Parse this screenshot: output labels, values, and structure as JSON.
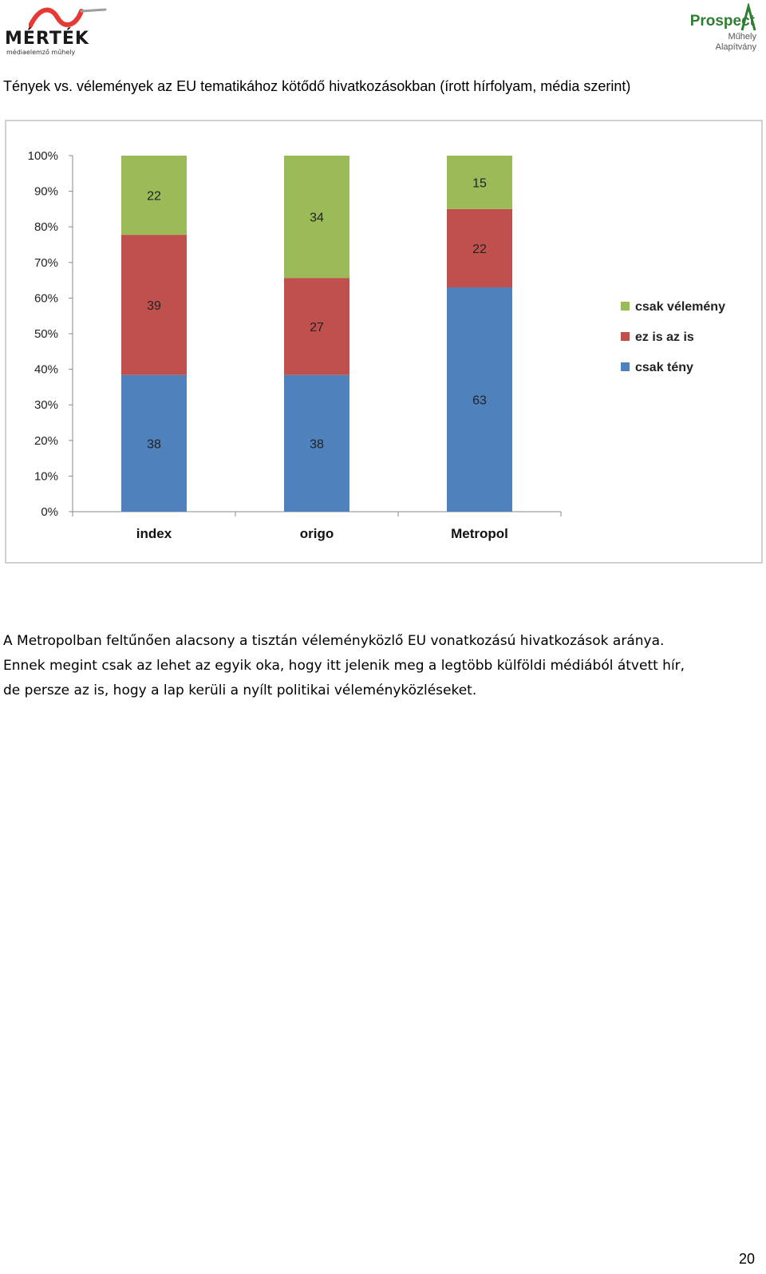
{
  "header": {
    "left_logo": {
      "name": "MÉRTÉK",
      "subtitle": "médiaelemző műhely",
      "accent": "#e53935"
    },
    "right_logo": {
      "name": "Prospect",
      "line2": "Műhely",
      "line3": "Alapítvány",
      "accent": "#2e7d32"
    }
  },
  "page_title": "Tények vs. vélemények az EU tematikához kötődő hivatkozásokban (írott hírfolyam, média szerint)",
  "chart_data": {
    "type": "bar",
    "stacked": true,
    "percent": true,
    "categories": [
      "index",
      "origo",
      "Metropol"
    ],
    "series": [
      {
        "name": "csak tény",
        "color": "#4f81bd",
        "values": [
          38,
          38,
          63
        ]
      },
      {
        "name": "ez is az is",
        "color": "#c0504d",
        "values": [
          39,
          27,
          22
        ]
      },
      {
        "name": "csak vélemény",
        "color": "#9bbb59",
        "values": [
          22,
          34,
          15
        ]
      }
    ],
    "y_ticks": [
      "0%",
      "10%",
      "20%",
      "30%",
      "40%",
      "50%",
      "60%",
      "70%",
      "80%",
      "90%",
      "100%"
    ],
    "ylim": [
      0,
      100
    ],
    "legend_position": "right",
    "legend_order": [
      "csak vélemény",
      "ez is az is",
      "csak tény"
    ]
  },
  "paragraph": {
    "line1": "A Metropolban feltűnően alacsony a tisztán véleményközlő EU vonatkozású hivatkozások aránya.",
    "line2": "Ennek megint csak az lehet az egyik oka, hogy itt jelenik meg a legtöbb külföldi médiából átvett hír,",
    "line3": "de persze az is, hogy a lap kerüli a nyílt politikai véleményközléseket."
  },
  "page_number": "20"
}
